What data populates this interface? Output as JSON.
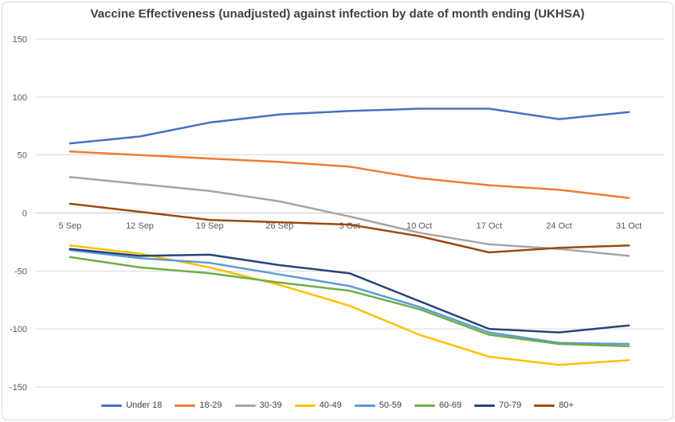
{
  "chart_data": {
    "type": "line",
    "title": "Vaccine Effectiveness (unadjusted) against infection by date of month ending (UKHSA)",
    "categories": [
      "5 Sep",
      "12 Sep",
      "19 Sep",
      "26 Sep",
      "3 Oct",
      "10 Oct",
      "17 Oct",
      "24 Oct",
      "31 Oct"
    ],
    "series": [
      {
        "name": "Under 18",
        "color": "#4472C4",
        "values": [
          60,
          66,
          78,
          85,
          88,
          90,
          90,
          81,
          87
        ]
      },
      {
        "name": "18-29",
        "color": "#ED7D31",
        "values": [
          53,
          50,
          47,
          44,
          40,
          30,
          24,
          20,
          13
        ]
      },
      {
        "name": "30-39",
        "color": "#A5A5A5",
        "values": [
          31,
          25,
          19,
          10,
          -3,
          -17,
          -27,
          -31,
          -37
        ]
      },
      {
        "name": "40-49",
        "color": "#FFC000",
        "values": [
          -28,
          -35,
          -47,
          -62,
          -80,
          -105,
          -124,
          -131,
          -127
        ]
      },
      {
        "name": "50-59",
        "color": "#5B9BD5",
        "values": [
          -32,
          -39,
          -43,
          -53,
          -63,
          -81,
          -103,
          -112,
          -113
        ]
      },
      {
        "name": "60-69",
        "color": "#70AD47",
        "values": [
          -38,
          -47,
          -52,
          -60,
          -67,
          -83,
          -105,
          -113,
          -115
        ]
      },
      {
        "name": "70-79",
        "color": "#264478",
        "values": [
          -31,
          -37,
          -36,
          -45,
          -52,
          -76,
          -100,
          -103,
          -97
        ]
      },
      {
        "name": "80+",
        "color": "#9E480E",
        "values": [
          8,
          1,
          -6,
          -8,
          -10,
          -20,
          -34,
          -30,
          -28
        ]
      }
    ],
    "ylim": [
      -150,
      150
    ],
    "yticks": [
      150,
      100,
      50,
      0,
      -50,
      -100,
      -150
    ],
    "xlabel": "",
    "ylabel": "",
    "grid": true,
    "legend_position": "bottom"
  },
  "colors": {
    "background": "#FFFFFF",
    "border": "#D6D6D6",
    "gridline": "#D9D9D9",
    "zero_line": "#C9C9C9",
    "axis_text": "#595959",
    "title_text": "#404040"
  }
}
